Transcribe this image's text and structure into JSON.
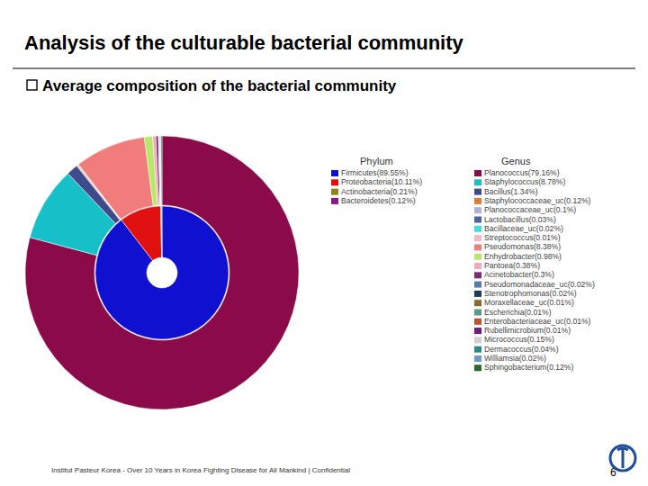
{
  "header": {
    "title": "Analysis of the culturable bacterial community",
    "subtitle": "Average composition of the bacterial community"
  },
  "footer": {
    "text": "Institut Pasteur Korea - Over 10 Years in Korea Fighting Disease for All Mankind | Confidential",
    "page_number": "6"
  },
  "chart_data": {
    "type": "sunburst",
    "series": [
      {
        "name": "Phylum",
        "labels": [
          "Firmicutes(89.55%)",
          "Proteobacteria(10.11%)",
          "Actinobacteria(0.21%)",
          "Bacteroidetes(0.12%)"
        ],
        "values": [
          89.55,
          10.11,
          0.21,
          0.12
        ],
        "colors": [
          "#1010d0",
          "#e01010",
          "#8a8a1a",
          "#8a1a8a"
        ]
      },
      {
        "name": "Genus",
        "labels": [
          "Planococcus(79.16%)",
          "Staphylococcus(8.78%)",
          "Bacillus(1.34%)",
          "Staphylococcaceae_uc(0.12%)",
          "Planococcaceae_uc(0.1%)",
          "Lactobacillus(0.03%)",
          "Bacillaceae_uc(0.02%)",
          "Streptococcus(0.01%)",
          "Pseudomonas(8.38%)",
          "Enhydrobacter(0.98%)",
          "Pantoea(0.38%)",
          "Acinetobacter(0.3%)",
          "Pseudomonadaceae_uc(0.02%)",
          "Stenotrophomonas(0.02%)",
          "Moraxellaceae_uc(0.01%)",
          "Escherichia(0.01%)",
          "Enterobacteriaceae_uc(0.01%)",
          "Rubellimicrobium(0.01%)",
          "Micrococcus(0.15%)",
          "Dermacoccus(0.04%)",
          "Williamsia(0.02%)",
          "Sphingobacterium(0.12%)"
        ],
        "values": [
          79.16,
          8.78,
          1.34,
          0.12,
          0.1,
          0.03,
          0.02,
          0.01,
          8.38,
          0.98,
          0.38,
          0.3,
          0.02,
          0.02,
          0.01,
          0.01,
          0.01,
          0.01,
          0.15,
          0.04,
          0.02,
          0.12
        ],
        "colors": [
          "#8b0a4a",
          "#17bfc8",
          "#3d4a8c",
          "#e07b3a",
          "#b0b0d8",
          "#5060a0",
          "#40e0e0",
          "#f0b8c8",
          "#f07c7c",
          "#b8e86a",
          "#f4a8b8",
          "#7a2a7a",
          "#5a7ab0",
          "#1a3a5a",
          "#8a6a2a",
          "#5a9a8a",
          "#c05030",
          "#6a1a8a",
          "#d0d0d0",
          "#2a8a8a",
          "#6a9ad0",
          "#2a6a2a"
        ]
      }
    ],
    "legend": "right"
  }
}
